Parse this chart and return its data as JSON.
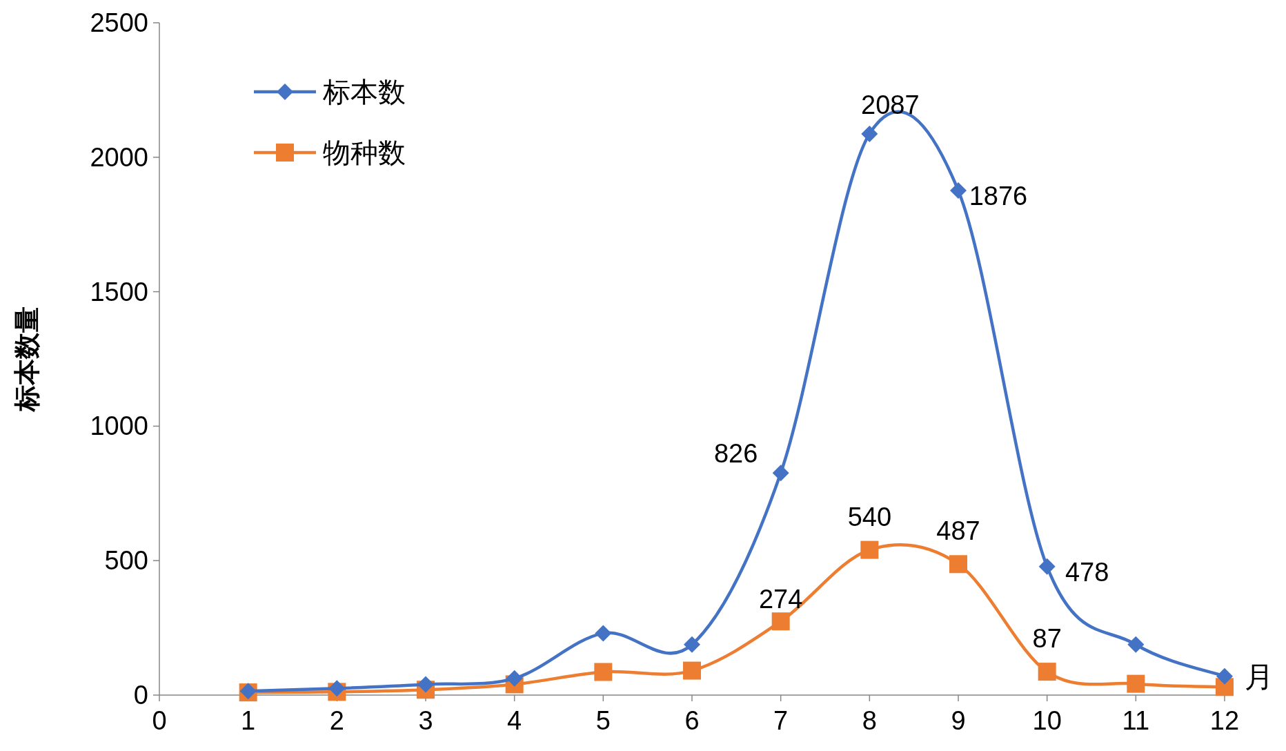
{
  "chart_data": {
    "type": "line",
    "ylabel": "标本数量",
    "xlabel": "月",
    "x": [
      1,
      2,
      3,
      4,
      5,
      6,
      7,
      8,
      9,
      10,
      11,
      12
    ],
    "series": [
      {
        "name": "标本数",
        "color": "#4472c4",
        "marker": "diamond",
        "values": [
          15,
          25,
          40,
          62,
          230,
          188,
          826,
          2087,
          1876,
          478,
          188,
          70
        ],
        "value_labels": [
          null,
          null,
          null,
          null,
          null,
          null,
          "826",
          "2087",
          "1876",
          "478",
          null,
          null
        ]
      },
      {
        "name": "物种数",
        "color": "#ed7d31",
        "marker": "square",
        "values": [
          10,
          12,
          20,
          40,
          86,
          91,
          274,
          540,
          487,
          87,
          42,
          30
        ],
        "value_labels": [
          null,
          null,
          null,
          null,
          null,
          null,
          "274",
          "540",
          "487",
          "87",
          null,
          null
        ]
      }
    ],
    "xlim": [
      0,
      12
    ],
    "xticks": [
      0,
      1,
      2,
      3,
      4,
      5,
      6,
      7,
      8,
      9,
      10,
      11,
      12
    ],
    "ylim": [
      0,
      2500
    ],
    "yticks": [
      0,
      500,
      1000,
      1500,
      2000,
      2500
    ],
    "grid": false,
    "legend": "top left",
    "line_style": "solid"
  }
}
